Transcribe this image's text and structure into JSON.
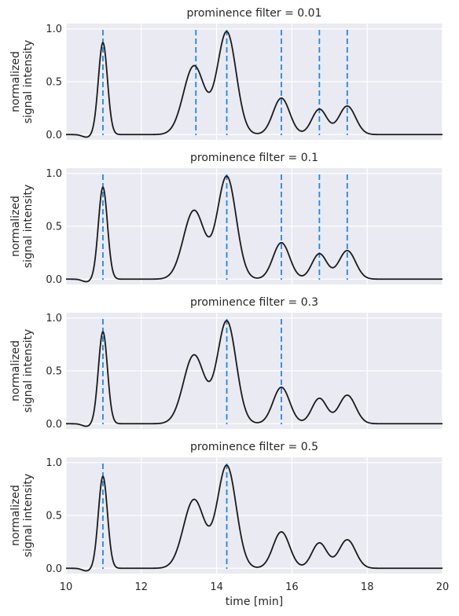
{
  "chart_data": {
    "type": "line",
    "xlabel": "time [min]",
    "ylabel_lines": [
      "normalized",
      "signal intensity"
    ],
    "xlim": [
      10,
      20
    ],
    "ylim": [
      -0.05,
      1.05
    ],
    "x_ticks": [
      10,
      12,
      14,
      16,
      18,
      20
    ],
    "y_ticks": [
      0.0,
      0.5,
      1.0
    ],
    "y_tick_labels": [
      "0.0",
      "0.5",
      "1.0"
    ],
    "grid": true,
    "background_color": "#eaeaf2",
    "line_color": "#1a1a1a",
    "marker_color": "#1f88e5",
    "signal": {
      "baseline_dip": {
        "center": 10.55,
        "depth": 0.025,
        "width": 0.12
      },
      "peaks": [
        {
          "center": 10.98,
          "height": 0.87,
          "width": 0.12
        },
        {
          "center": 13.4,
          "height": 0.65,
          "width": 0.28
        },
        {
          "center": 14.27,
          "height": 0.97,
          "width": 0.25
        },
        {
          "center": 15.72,
          "height": 0.345,
          "width": 0.22
        },
        {
          "center": 16.73,
          "height": 0.24,
          "width": 0.2
        },
        {
          "center": 17.47,
          "height": 0.27,
          "width": 0.22
        }
      ]
    },
    "panels": [
      {
        "title": "prominence filter = 0.01",
        "peak_markers": [
          10.98,
          13.45,
          14.27,
          15.72,
          16.73,
          17.47
        ]
      },
      {
        "title": "prominence filter = 0.1",
        "peak_markers": [
          10.98,
          14.27,
          15.72,
          16.73,
          17.47
        ]
      },
      {
        "title": "prominence filter = 0.3",
        "peak_markers": [
          10.98,
          14.27,
          15.72
        ]
      },
      {
        "title": "prominence filter = 0.5",
        "peak_markers": [
          10.98,
          14.27
        ]
      }
    ]
  }
}
